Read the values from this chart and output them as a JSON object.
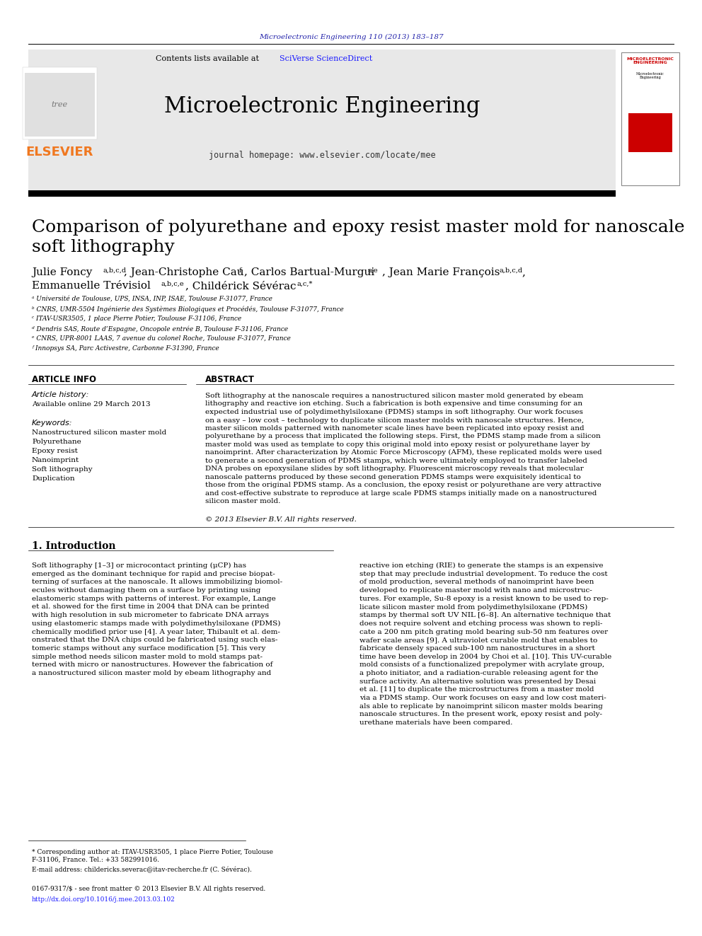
{
  "bg_color": "#ffffff",
  "journal_ref_text": "Microelectronic Engineering 110 (2013) 183–187",
  "journal_ref_color": "#2222aa",
  "journal_ref_fontsize": 7.5,
  "header_bg": "#e8e8e8",
  "header_journal_title": "Microelectronic Engineering",
  "header_contents_text": "Contents lists available at ",
  "header_sciverse_text": "SciVerse ScienceDirect",
  "header_sciverse_color": "#1a1aff",
  "header_homepage_text": "journal homepage: www.elsevier.com/locate/mee",
  "elsevier_color": "#f07820",
  "paper_title": "Comparison of polyurethane and epoxy resist master mold for nanoscale\nsoft lithography",
  "affiliations": [
    "ᵃ Université de Toulouse, UPS, INSA, INP, ISAE, Toulouse F-31077, France",
    "ᵇ CNRS, UMR-5504 Ingénierie des Systèmes Biologiques et Procédés, Toulouse F-31077, France",
    "ᶜ ITAV-USR3505, 1 place Pierre Potier, Toulouse F-31106, France",
    "ᵈ Dendris SAS, Route d’Espagne, Oncopole entrée B, Toulouse F-31106, France",
    "ᵉ CNRS, UPR-8001 LAAS, 7 avenue du colonel Roche, Toulouse F-31077, France",
    "ᶠ Innopsys SA, Parc Activestre, Carbonne F-31390, France"
  ],
  "article_info_label": "ARTICLE INFO",
  "article_history_label": "Article history:",
  "article_history_date": "Available online 29 March 2013",
  "keywords_label": "Keywords:",
  "keywords": [
    "Nanostructured silicon master mold",
    "Polyurethane",
    "Epoxy resist",
    "Nanoimprint",
    "Soft lithography",
    "Duplication"
  ],
  "abstract_label": "ABSTRACT",
  "abstract_text": "Soft lithography at the nanoscale requires a nanostructured silicon master mold generated by ebeam\nlithography and reactive ion etching. Such a fabrication is both expensive and time consuming for an\nexpected industrial use of polydimethylsiloxane (PDMS) stamps in soft lithography. Our work focuses\non a easy – low cost – technology to duplicate silicon master molds with nanoscale structures. Hence,\nmaster silicon molds patterned with nanometer scale lines have been replicated into epoxy resist and\npolyurethane by a process that implicated the following steps. First, the PDMS stamp made from a silicon\nmaster mold was used as template to copy this original mold into epoxy resist or polyurethane layer by\nnanoimprint. After characterization by Atomic Force Microscopy (AFM), these replicated molds were used\nto generate a second generation of PDMS stamps, which were ultimately employed to transfer labeled\nDNA probes on epoxysilane slides by soft lithography. Fluorescent microscopy reveals that molecular\nnanoscale patterns produced by these second generation PDMS stamps were exquisitely identical to\nthose from the original PDMS stamp. As a conclusion, the epoxy resist or polyurethane are very attractive\nand cost-effective substrate to reproduce at large scale PDMS stamps initially made on a nanostructured\nsilicon master mold.",
  "copyright_text": "© 2013 Elsevier B.V. All rights reserved.",
  "intro_heading": "1. Introduction",
  "intro_col1": "Soft lithography [1–3] or microcontact printing (μCP) has\nemerged as the dominant technique for rapid and precise biopat-\nterning of surfaces at the nanoscale. It allows immobilizing biomol-\necules without damaging them on a surface by printing using\nelastomeric stamps with patterns of interest. For example, Lange\net al. showed for the first time in 2004 that DNA can be printed\nwith high resolution in sub micrometer to fabricate DNA arrays\nusing elastomeric stamps made with polydimethylsiloxane (PDMS)\nchemically modified prior use [4]. A year later, Thibault et al. dem-\nonstrated that the DNA chips could be fabricated using such elas-\ntomeric stamps without any surface modification [5]. This very\nsimple method needs silicon master mold to mold stamps pat-\nterned with micro or nanostructures. However the fabrication of\na nanostructured silicon master mold by ebeam lithography and",
  "intro_col2": "reactive ion etching (RIE) to generate the stamps is an expensive\nstep that may preclude industrial development. To reduce the cost\nof mold production, several methods of nanoimprint have been\ndeveloped to replicate master mold with nano and microstruc-\ntures. For example, Su-8 epoxy is a resist known to be used to rep-\nlicate silicon master mold from polydimethylsiloxane (PDMS)\nstamps by thermal soft UV NIL [6–8]. An alternative technique that\ndoes not require solvent and etching process was shown to repli-\ncate a 200 nm pitch grating mold bearing sub-50 nm features over\nwafer scale areas [9]. A ultraviolet curable mold that enables to\nfabricate densely spaced sub-100 nm nanostructures in a short\ntime have been develop in 2004 by Choi et al. [10]. This UV-curable\nmold consists of a functionalized prepolymer with acrylate group,\na photo initiator, and a radiation-curable releasing agent for the\nsurface activity. An alternative solution was presented by Desai\net al. [11] to duplicate the microstructures from a master mold\nvia a PDMS stamp. Our work focuses on easy and low cost materi-\nals able to replicate by nanoimprint silicon master molds bearing\nnanoscale structures. In the present work, epoxy resist and poly-\nurethane materials have been compared.",
  "footnote_corresponding": "* Corresponding author at: ITAV-USR3505, 1 place Pierre Potier, Toulouse\nF-31106, France. Tel.: +33 582991016.",
  "footnote_email": "E-mail address: childericks.severac@itav-recherche.fr (C. Sévérac).",
  "footnote_issn": "0167-9317/$ - see front matter © 2013 Elsevier B.V. All rights reserved.",
  "footnote_doi": "http://dx.doi.org/10.1016/j.mee.2013.03.102"
}
